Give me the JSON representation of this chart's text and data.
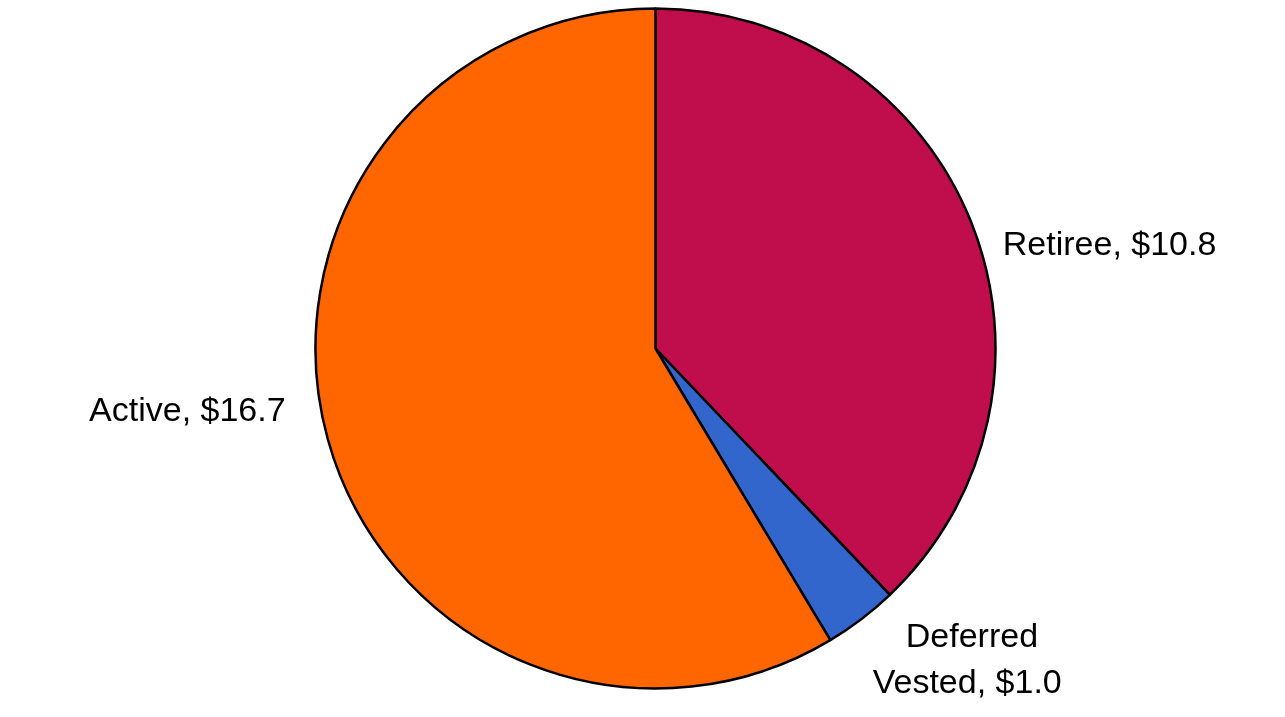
{
  "chart_data": {
    "type": "pie",
    "categories": [
      "Retiree",
      "Deferred Vested",
      "Active"
    ],
    "values": [
      10.8,
      1.0,
      16.7
    ],
    "colors": [
      "#c00d4c",
      "#3366cc",
      "#ff6600"
    ],
    "value_labels": [
      "$10.8",
      "$1.0",
      "$16.7"
    ]
  }
}
